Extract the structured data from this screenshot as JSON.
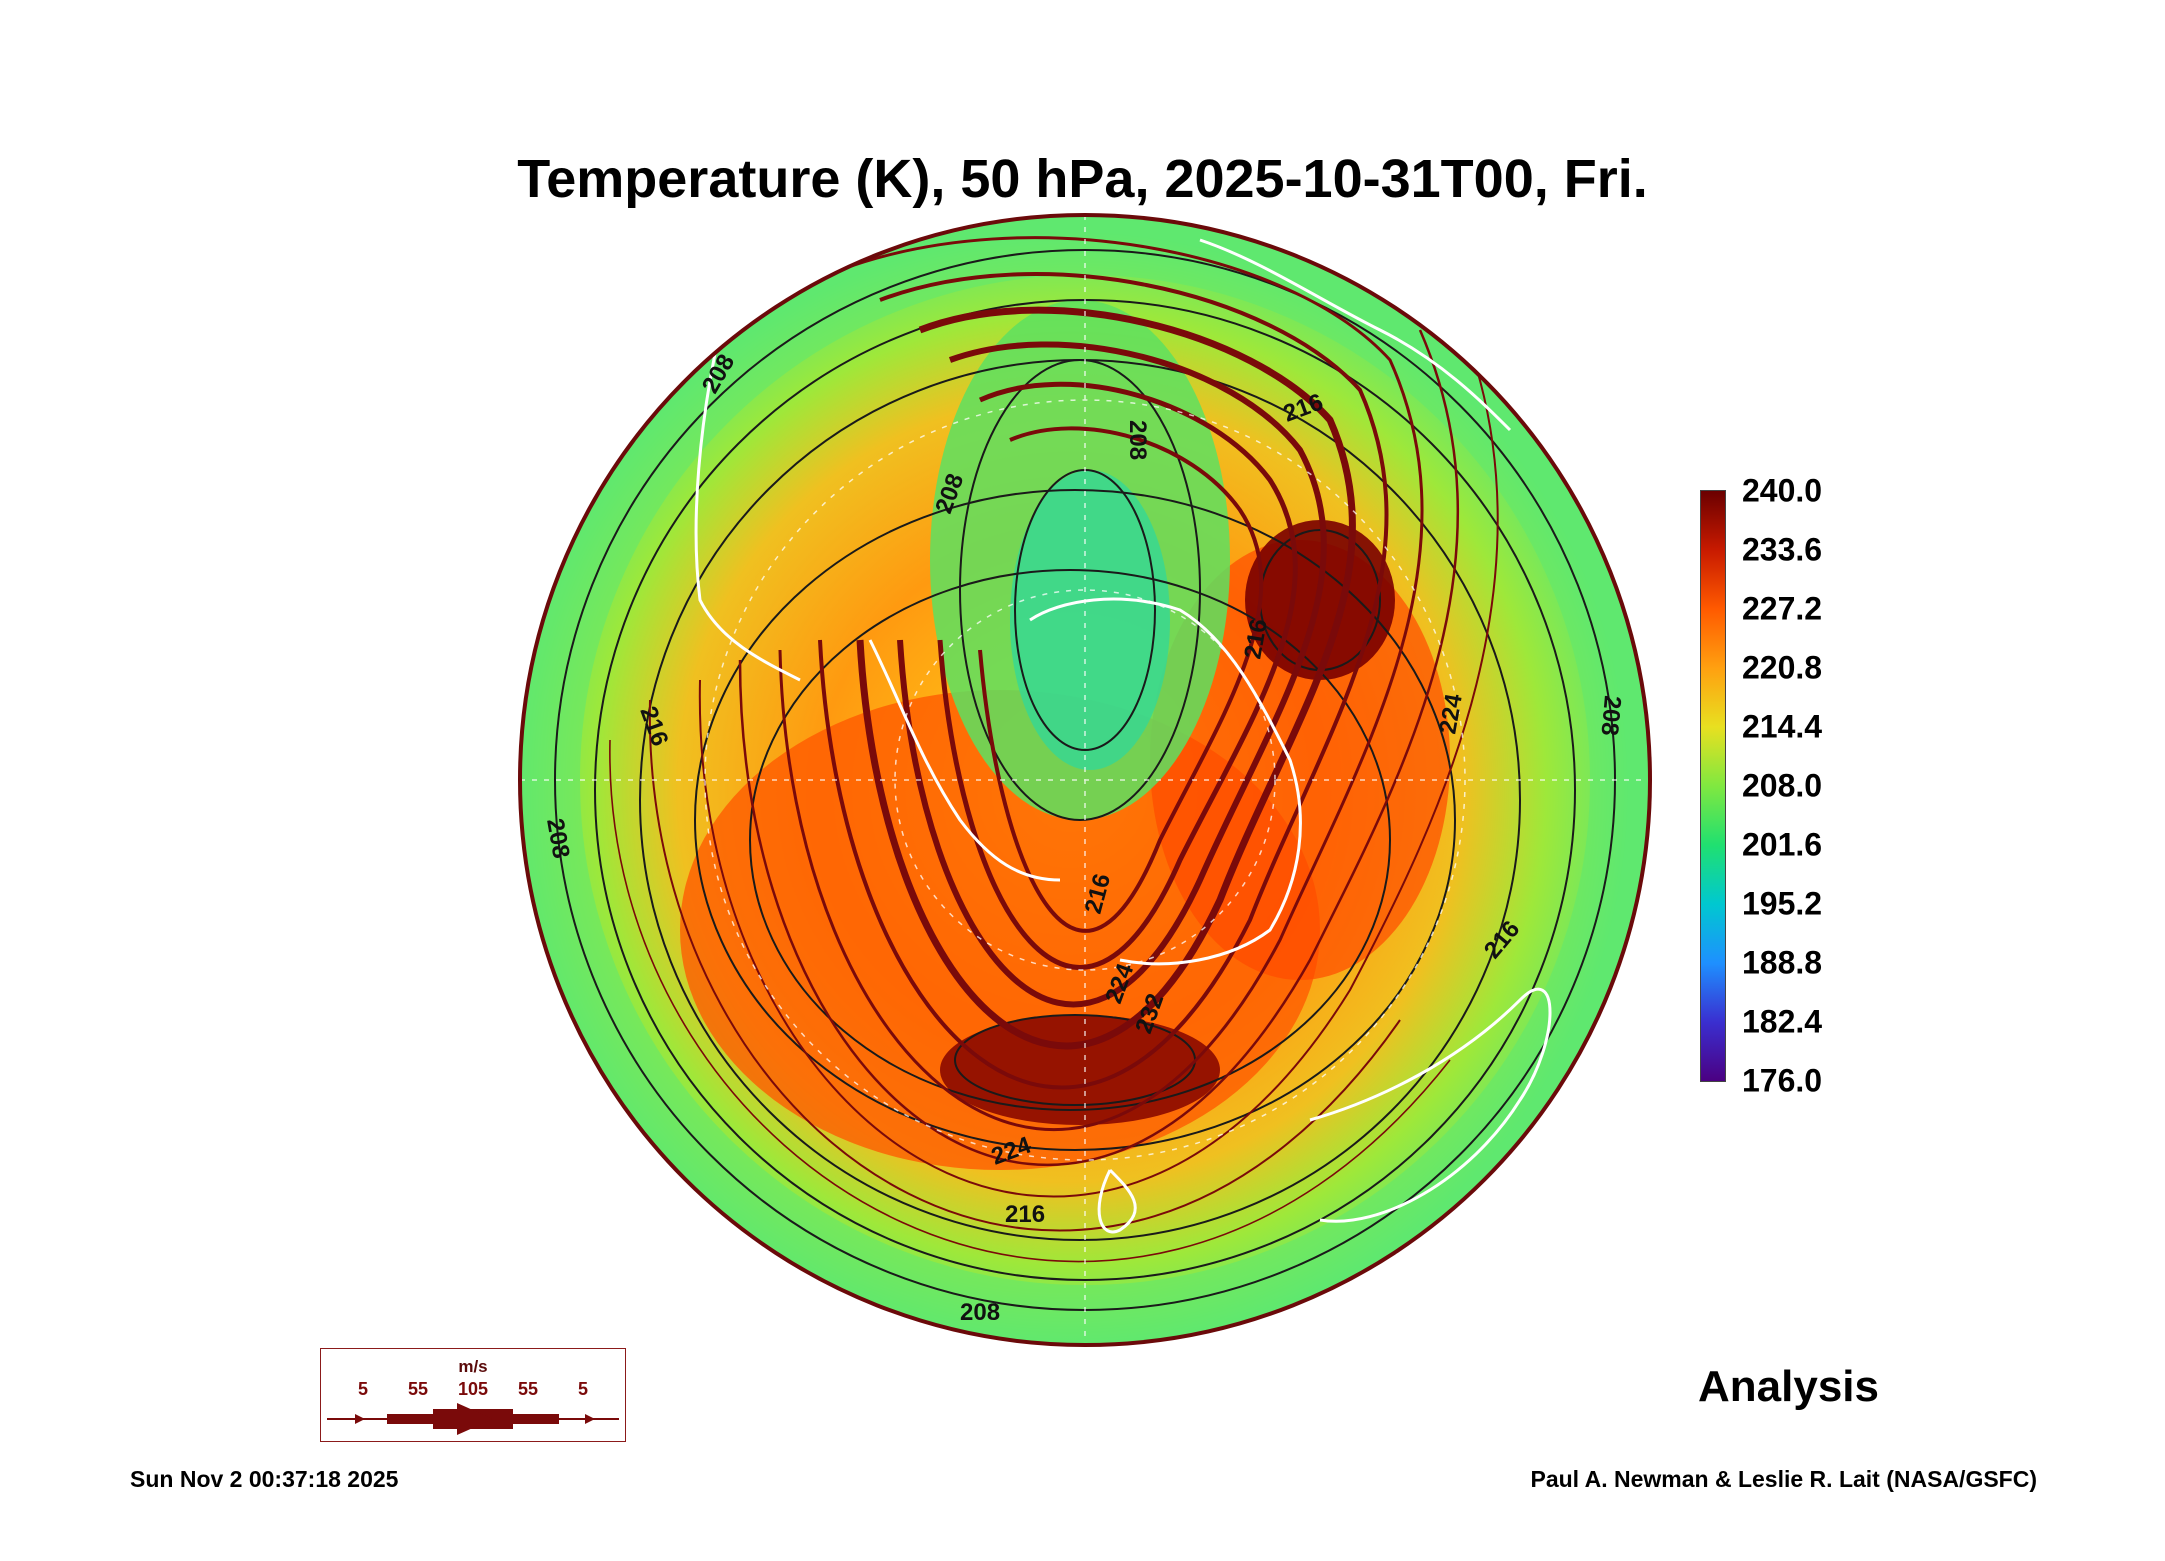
{
  "title": "Temperature (K), 50 hPa, 2025-10-31T00, Fri.",
  "colorbar": {
    "labels": [
      "240.0",
      "233.6",
      "227.2",
      "220.8",
      "214.4",
      "208.0",
      "201.6",
      "195.2",
      "188.8",
      "182.4",
      "176.0"
    ],
    "colors": [
      "#4b0082",
      "#3a2fd0",
      "#1e90ff",
      "#00c8d0",
      "#20e070",
      "#80e840",
      "#e8e020",
      "#ffa010",
      "#ff5a00",
      "#c81a00",
      "#6b0000"
    ]
  },
  "contour_labels": [
    "208",
    "208",
    "208",
    "208",
    "208",
    "208",
    "216",
    "216",
    "216",
    "216",
    "216",
    "216",
    "224",
    "224",
    "224",
    "232"
  ],
  "wind_legend": {
    "unit": "m/s",
    "labels": [
      "5",
      "55",
      "105",
      "55",
      "5"
    ]
  },
  "analysis_label": "Analysis",
  "timestamp": "Sun Nov  2 00:37:18 2025",
  "credit": "Paul A. Newman & Leslie R. Lait (NASA/GSFC)"
}
